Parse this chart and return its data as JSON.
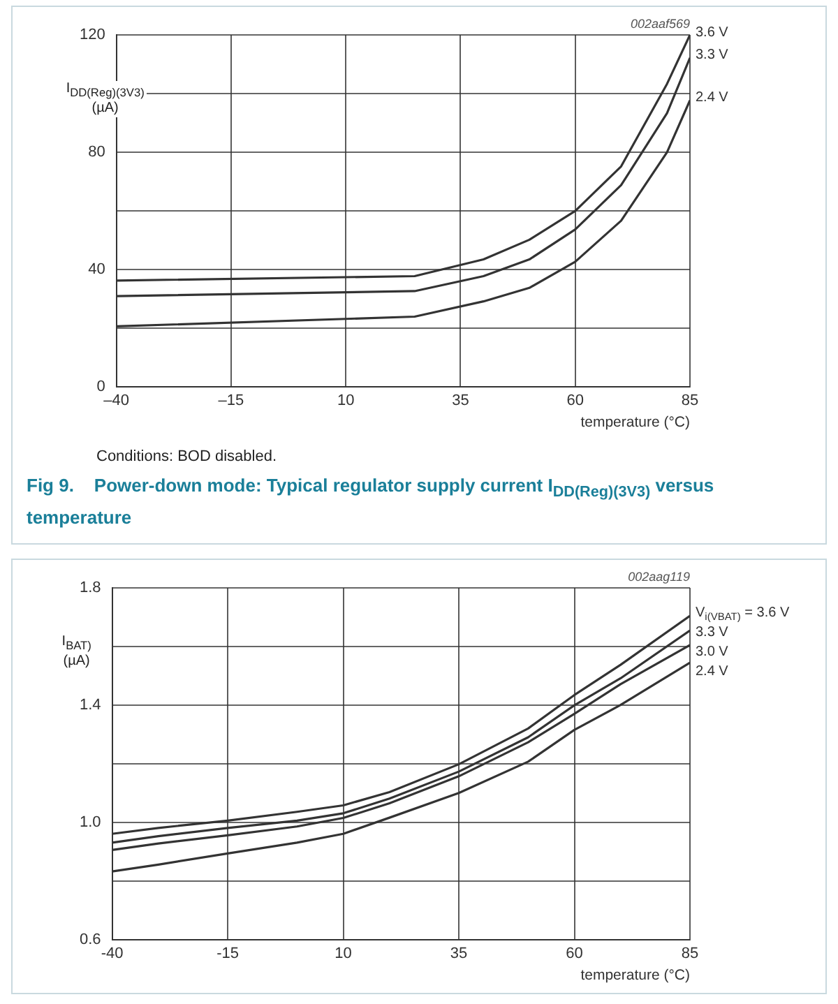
{
  "chart_data": [
    {
      "type": "line",
      "title": "Fig 9.    Power-down mode: Typical regulator supply current I$_{DD(Reg)(3V3)}$ versus temperature",
      "xlabel": "temperature (°C)",
      "ylabel": "I$_{DD(Reg)(3V3)}$\n(µA)",
      "annotations": [
        "002aaf569",
        "Conditions: BOD disabled."
      ],
      "x": [
        -40,
        25,
        40,
        50,
        60,
        70,
        80,
        85
      ],
      "series": [
        {
          "name": "3.6 V",
          "color": "#333333",
          "values": [
            36.3,
            37.8,
            43.5,
            50.2,
            60,
            75.2,
            103.3,
            120
          ]
        },
        {
          "name": "3.3 V",
          "color": "#333333",
          "values": [
            31,
            32.7,
            37.8,
            43.5,
            53.7,
            68.8,
            93.3,
            112.2
          ]
        },
        {
          "name": "2.4 V",
          "color": "#333333",
          "values": [
            20.7,
            24,
            29.2,
            33.8,
            42.7,
            56.7,
            80,
            97.7
          ]
        }
      ],
      "xlim": [
        -40,
        85
      ],
      "xticks": [
        {
          "value": -40,
          "label": "–40"
        },
        {
          "value": -15,
          "label": "–15"
        },
        10,
        35,
        60,
        85
      ],
      "ylim": [
        0,
        120
      ],
      "yticks": [
        0,
        {
          "value": 20,
          "label": null
        },
        40,
        {
          "value": 60,
          "label": null
        },
        80,
        {
          "value": 100,
          "label": null
        },
        120
      ],
      "grid": true,
      "legend": false,
      "marker": "none",
      "line_style": "solid"
    },
    {
      "type": "line",
      "xlabel": "temperature (°C)",
      "ylabel": "I$_{BAT)}$\n(µA)",
      "annotations": [
        "002aag119"
      ],
      "x": [
        -40,
        -30,
        -15,
        0,
        10,
        20,
        35,
        50,
        60,
        70,
        85
      ],
      "series": [
        {
          "name": "V$_{i(VBAT)}$ = 3.6 V",
          "color": "#333333",
          "values": [
            0.962,
            0.982,
            1.007,
            1.037,
            1.059,
            1.104,
            1.199,
            1.321,
            1.435,
            1.538,
            1.705
          ]
        },
        {
          "name": "3.3 V",
          "color": "#333333",
          "values": [
            0.932,
            0.954,
            0.982,
            1.007,
            1.032,
            1.082,
            1.174,
            1.291,
            1.4,
            1.492,
            1.655
          ]
        },
        {
          "name": "3.0 V",
          "color": "#333333",
          "values": [
            0.907,
            0.929,
            0.957,
            0.987,
            1.016,
            1.066,
            1.158,
            1.274,
            1.371,
            1.472,
            1.605
          ]
        },
        {
          "name": "2.4 V",
          "color": "#333333",
          "values": [
            0.834,
            0.857,
            0.895,
            0.932,
            0.962,
            1.017,
            1.101,
            1.208,
            1.316,
            1.401,
            1.545
          ]
        }
      ],
      "xlim": [
        -40,
        85
      ],
      "xticks": [
        -40,
        -15,
        10,
        35,
        60,
        85
      ],
      "ylim": [
        0.6,
        1.8
      ],
      "yticks": [
        0.6,
        {
          "value": 0.8,
          "label": null
        },
        {
          "value": 1,
          "label": "1.0"
        },
        {
          "value": 1.2,
          "label": null
        },
        1.4,
        {
          "value": 1.6,
          "label": null
        },
        1.8
      ],
      "grid": true,
      "legend": false,
      "marker": "none",
      "line_style": "solid"
    }
  ]
}
